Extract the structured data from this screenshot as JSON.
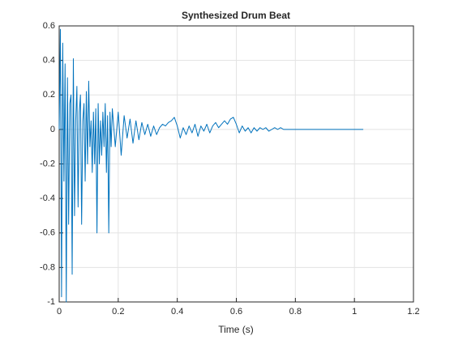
{
  "chart_data": {
    "type": "line",
    "title": "Synthesized Drum Beat",
    "x_label": "Time (s)",
    "x": [
      0,
      0.004,
      0.008,
      0.012,
      0.016,
      0.02,
      0.024,
      0.028,
      0.032,
      0.036,
      0.04,
      0.044,
      0.048,
      0.052,
      0.056,
      0.06,
      0.064,
      0.068,
      0.072,
      0.076,
      0.08,
      0.084,
      0.088,
      0.092,
      0.096,
      0.1,
      0.104,
      0.108,
      0.112,
      0.116,
      0.12,
      0.124,
      0.128,
      0.132,
      0.136,
      0.14,
      0.144,
      0.148,
      0.152,
      0.156,
      0.16,
      0.164,
      0.168,
      0.172,
      0.176,
      0.18,
      0.19,
      0.2,
      0.21,
      0.22,
      0.23,
      0.24,
      0.25,
      0.26,
      0.27,
      0.28,
      0.29,
      0.3,
      0.31,
      0.32,
      0.33,
      0.34,
      0.35,
      0.36,
      0.37,
      0.38,
      0.39,
      0.4,
      0.41,
      0.42,
      0.43,
      0.44,
      0.45,
      0.46,
      0.47,
      0.48,
      0.49,
      0.5,
      0.51,
      0.52,
      0.53,
      0.54,
      0.55,
      0.56,
      0.57,
      0.58,
      0.59,
      0.6,
      0.61,
      0.62,
      0.63,
      0.64,
      0.65,
      0.66,
      0.67,
      0.68,
      0.69,
      0.7,
      0.71,
      0.72,
      0.73,
      0.74,
      0.75,
      0.76,
      0.78,
      1.03
    ],
    "series": [
      {
        "color": "#0072bd",
        "values": [
          0,
          0.58,
          -0.97,
          0.5,
          -0.3,
          0.38,
          -1.0,
          0.3,
          -0.55,
          0.15,
          0.2,
          -0.84,
          0.41,
          -0.5,
          0.05,
          0.25,
          -0.45,
          0.1,
          0.2,
          -0.55,
          0.05,
          0.15,
          -0.3,
          0.22,
          -0.2,
          0.28,
          -0.1,
          0.05,
          -0.25,
          0.1,
          -0.2,
          0.12,
          -0.6,
          0.15,
          -0.2,
          0.05,
          -0.15,
          0.1,
          -0.1,
          0.15,
          -0.25,
          0.08,
          -0.6,
          0.1,
          -0.1,
          0.12,
          -0.1,
          0.1,
          -0.15,
          0.08,
          -0.05,
          0.06,
          -0.08,
          0.05,
          -0.06,
          0.04,
          -0.03,
          0.03,
          -0.04,
          0.02,
          -0.03,
          0.01,
          0.03,
          0.02,
          0.04,
          0.05,
          0.07,
          0.02,
          -0.05,
          0.01,
          -0.03,
          0.02,
          -0.02,
          0.03,
          -0.04,
          0.02,
          -0.01,
          0.03,
          -0.02,
          0.02,
          0.04,
          0.01,
          0.03,
          0.05,
          0.03,
          0.06,
          0.07,
          0.03,
          -0.02,
          0.02,
          -0.01,
          0.01,
          -0.02,
          0.01,
          -0.01,
          0.01,
          0,
          0.01,
          -0.01,
          0,
          0.01,
          0,
          0.01,
          0,
          0,
          0
        ]
      }
    ],
    "xlim": [
      0,
      1.2
    ],
    "xticks": [
      0,
      0.2,
      0.4,
      0.6,
      0.8,
      1,
      1.2
    ],
    "ylim": [
      -1,
      0.6
    ],
    "yticks": [
      -1,
      -0.8,
      -0.6,
      -0.4,
      -0.2,
      0,
      0.2,
      0.4,
      0.6
    ],
    "grid": true
  }
}
